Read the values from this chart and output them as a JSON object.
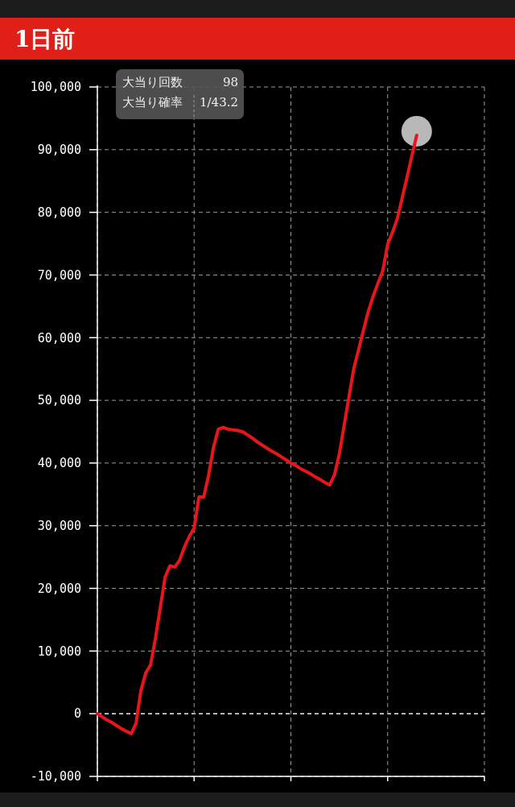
{
  "chart_data": {
    "type": "line",
    "title": "1日前",
    "annotations": [
      "大当り回数",
      "98",
      "大当り確率",
      "1/43.2"
    ],
    "categories": [
      null,
      null,
      null,
      null,
      null,
      null,
      null,
      null,
      null,
      null,
      null,
      null,
      null,
      null,
      null,
      null,
      null,
      null,
      null,
      null,
      null,
      null,
      null,
      null,
      null,
      null,
      null,
      null,
      null,
      null,
      null,
      null,
      null,
      null,
      null,
      null,
      null,
      null,
      null,
      null,
      null,
      null,
      null,
      null,
      null,
      null,
      null,
      null,
      null,
      null,
      null,
      null,
      null,
      null,
      null,
      null,
      null,
      null,
      null,
      null,
      null,
      null,
      null,
      null,
      null,
      null,
      null,
      null,
      null,
      null,
      null,
      null,
      null,
      null,
      null,
      null,
      null,
      null,
      null,
      null,
      null
    ],
    "ylim": [
      -10000,
      100000
    ],
    "yticks": [
      {
        "value": -10000,
        "label": "-10,000"
      },
      {
        "value": 0,
        "label": "0"
      },
      {
        "value": 10000,
        "label": "10,000"
      },
      {
        "value": 20000,
        "label": "20,000"
      },
      {
        "value": 30000,
        "label": "30,000"
      },
      {
        "value": 40000,
        "label": "40,000"
      },
      {
        "value": 50000,
        "label": "50,000"
      },
      {
        "value": 60000,
        "label": "60,000"
      },
      {
        "value": 70000,
        "label": "70,000"
      },
      {
        "value": 80000,
        "label": "80,000"
      },
      {
        "value": 90000,
        "label": "90,000"
      },
      {
        "value": 100000,
        "label": "100,000"
      }
    ],
    "grid": true,
    "ref_lines": [
      {
        "axis": "y",
        "value": 0,
        "color": "#dddddd",
        "line_style": "dashed"
      }
    ],
    "series": [
      {
        "color": "#e8161b",
        "values": [
          0,
          -500,
          -1000,
          -1400,
          -1900,
          -2400,
          -2800,
          -3200,
          -1500,
          3700,
          6500,
          7800,
          12000,
          16900,
          21800,
          23600,
          23400,
          24500,
          26600,
          28300,
          29600,
          34600,
          34600,
          38100,
          42500,
          45400,
          45700,
          45400,
          45300,
          45200,
          45000,
          44500,
          44000,
          43400,
          42900,
          42400,
          41900,
          41500,
          41000,
          40500,
          40000,
          39600,
          39100,
          38700,
          38300,
          37800,
          37400,
          36900,
          36500,
          38100,
          41400,
          46000,
          50500,
          55100,
          58100,
          61200,
          64200,
          66600,
          68700,
          70700,
          74900,
          76800,
          79000,
          82300,
          85600,
          89000,
          92300,
          null,
          null,
          null,
          null,
          null,
          null,
          null,
          null,
          null,
          null,
          null,
          null,
          null,
          null
        ]
      }
    ]
  }
}
